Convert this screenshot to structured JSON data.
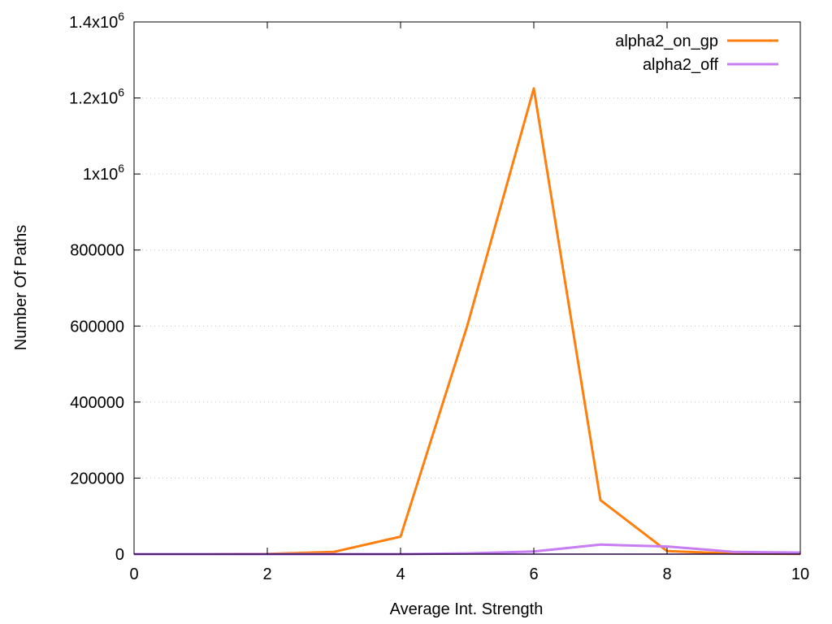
{
  "chart_data": {
    "type": "line",
    "xlabel": "Average Int. Strength",
    "ylabel": "Number Of Paths",
    "xlim": [
      0,
      10
    ],
    "ylim": [
      0,
      1400000
    ],
    "grid": true,
    "legend": "top-right",
    "x_ticks": [
      {
        "value": 0,
        "label": "0"
      },
      {
        "value": 2,
        "label": "2"
      },
      {
        "value": 4,
        "label": "4"
      },
      {
        "value": 6,
        "label": "6"
      },
      {
        "value": 8,
        "label": "8"
      },
      {
        "value": 10,
        "label": "10"
      }
    ],
    "y_ticks": [
      {
        "value": 0,
        "label": "0"
      },
      {
        "value": 200000,
        "label": "200000"
      },
      {
        "value": 400000,
        "label": "400000"
      },
      {
        "value": 600000,
        "label": "600000"
      },
      {
        "value": 800000,
        "label": "800000"
      },
      {
        "value": 1000000,
        "base": "1x10",
        "exp": "6"
      },
      {
        "value": 1200000,
        "base": "1.2x10",
        "exp": "6"
      },
      {
        "value": 1400000,
        "base": "1.4x10",
        "exp": "6"
      }
    ],
    "x": [
      0,
      1,
      2,
      3,
      4,
      5,
      6,
      7,
      8,
      9,
      10
    ],
    "series": [
      {
        "name": "alpha2_on_gp",
        "color": "#ff7f0e",
        "values": [
          0,
          0,
          500,
          6000,
          46000,
          600000,
          1225000,
          142000,
          8000,
          1500,
          500
        ]
      },
      {
        "name": "alpha2_off",
        "color": "#c77cf2",
        "values": [
          0,
          0,
          0,
          0,
          0,
          2000,
          7000,
          25000,
          20000,
          6000,
          4000
        ]
      }
    ]
  }
}
